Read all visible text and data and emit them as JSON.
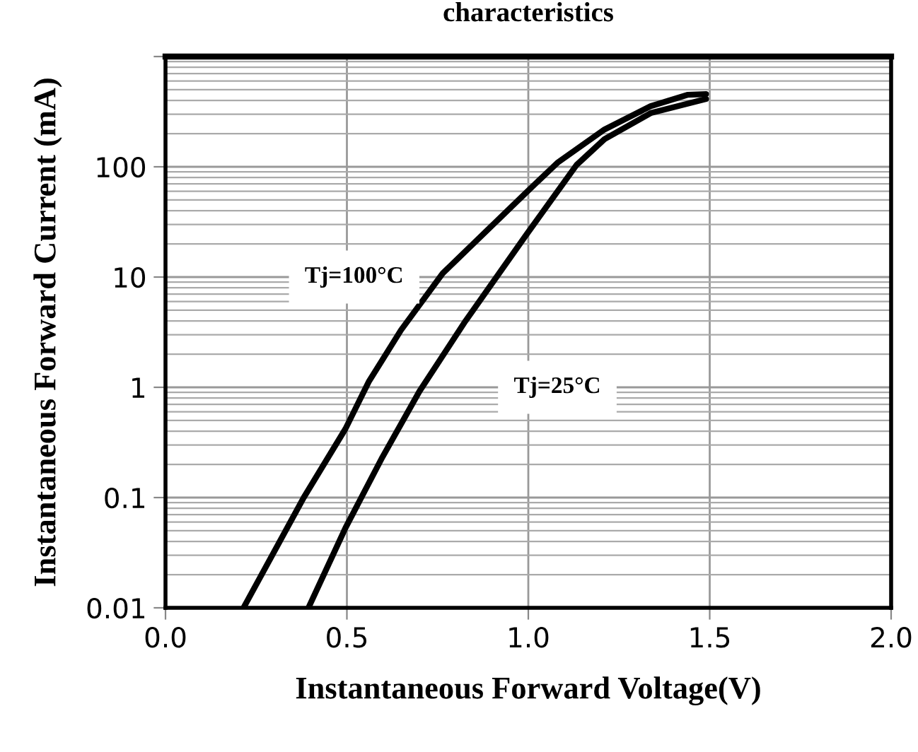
{
  "chart_data": {
    "type": "line",
    "title": "characteristics",
    "xlabel": "Instantaneous Forward Voltage(V)",
    "ylabel": "Instantaneous Forward Current (mA)",
    "log": "y",
    "grid": true,
    "legend": false,
    "marker": "none",
    "line_style": "solid",
    "xlim": [
      0,
      2
    ],
    "xticks": [
      {
        "value": 0,
        "label": "0.0"
      },
      {
        "value": 0.5,
        "label": "0.5"
      },
      {
        "value": 1,
        "label": "1.0"
      },
      {
        "value": 1.5,
        "label": "1.5"
      },
      {
        "value": 2,
        "label": "2.0"
      }
    ],
    "ylim": [
      0.01,
      1000
    ],
    "yticks": [
      0.01,
      0.1,
      1,
      10,
      100,
      {
        "value": 1000,
        "label": null
      }
    ],
    "series": [
      {
        "color": "#000000",
        "x": [
          0.215,
          0.381,
          0.496,
          0.56,
          0.649,
          0.764,
          0.993,
          1.082,
          1.21,
          1.337,
          1.44,
          1.49
        ],
        "values": [
          0.01,
          0.1,
          0.42,
          1.12,
          3.3,
          10.8,
          58,
          110,
          218,
          355,
          450,
          457
        ]
      },
      {
        "color": "#000000",
        "x": [
          0.394,
          0.496,
          0.598,
          0.7,
          0.827,
          0.993,
          1.133,
          1.21,
          1.337,
          1.49
        ],
        "values": [
          0.01,
          0.053,
          0.233,
          0.92,
          4.0,
          23.8,
          104,
          178,
          307,
          412
        ]
      }
    ],
    "annotations": [
      "Tj=100°C",
      "Tj=25°C"
    ]
  }
}
